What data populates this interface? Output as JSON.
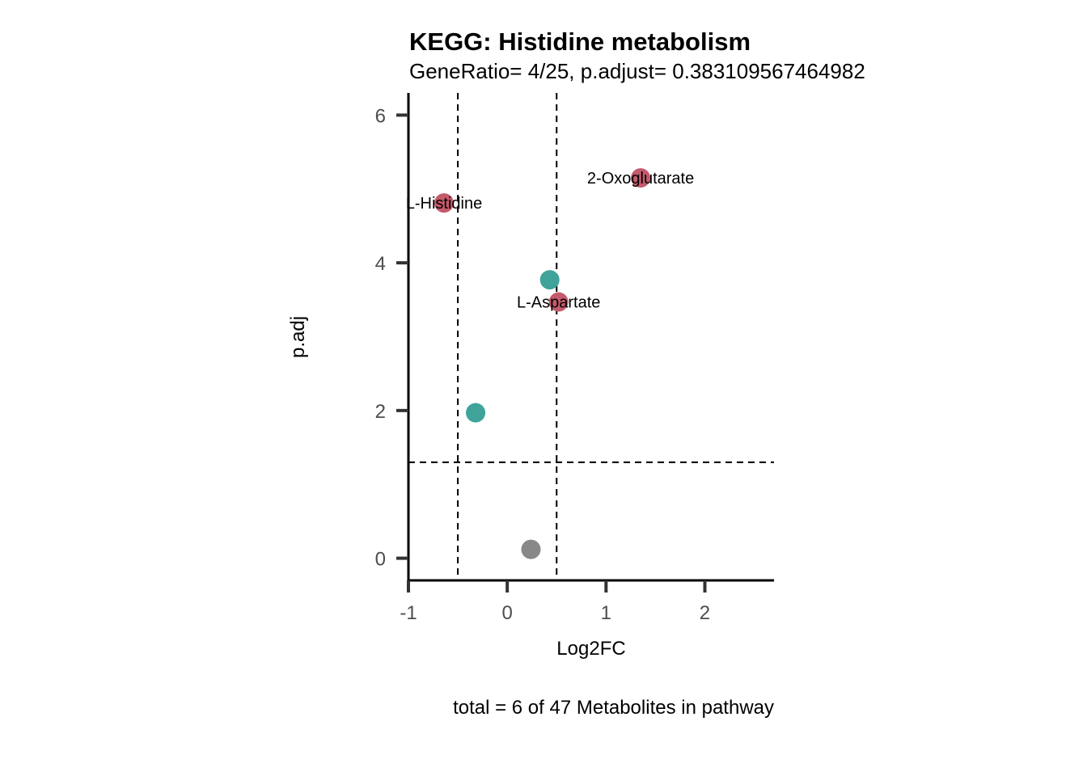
{
  "chart_data": {
    "type": "scatter",
    "title": "KEGG: Histidine metabolism",
    "subtitle": "GeneRatio= 4/25, p.adjust= 0.383109567464982",
    "xlabel": "Log2FC",
    "ylabel": "p.adj",
    "caption": "total = 6 of 47 Metabolites in pathway",
    "xlim": [
      -1,
      2.7
    ],
    "ylim": [
      -0.3,
      6.3
    ],
    "x_ticks": [
      -1,
      0,
      1,
      2
    ],
    "x_tick_labels": [
      "-1",
      "0",
      "1",
      "2"
    ],
    "y_ticks": [
      0,
      2,
      4,
      6
    ],
    "y_tick_labels": [
      "0",
      "2",
      "4",
      "6"
    ],
    "reference_lines": {
      "vertical": [
        -0.5,
        0.5
      ],
      "horizontal": [
        1.3
      ]
    },
    "grid": false,
    "legend": "none",
    "colors": {
      "red": "#C45A6B",
      "teal": "#3FA39A",
      "gray": "#888888"
    },
    "points": [
      {
        "x": 1.35,
        "y": 5.15,
        "color": "red",
        "label": "2-Oxoglutarate"
      },
      {
        "x": -0.64,
        "y": 4.81,
        "color": "red",
        "label": "L-Histidine"
      },
      {
        "x": 0.43,
        "y": 3.77,
        "color": "teal",
        "label": ""
      },
      {
        "x": 0.52,
        "y": 3.47,
        "color": "red",
        "label": "L-Aspartate"
      },
      {
        "x": -0.32,
        "y": 1.97,
        "color": "teal",
        "label": ""
      },
      {
        "x": 0.24,
        "y": 0.12,
        "color": "gray",
        "label": ""
      }
    ]
  }
}
